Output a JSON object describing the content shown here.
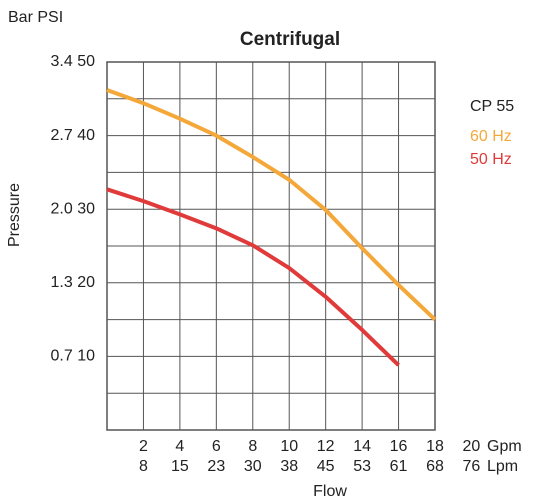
{
  "chart_data": {
    "type": "line",
    "title": "Centrifugal",
    "y_units": "Bar PSI",
    "ylabel": "Pressure",
    "xlabel": "Flow",
    "x_units": "Gpm",
    "x2_units": "Lpm",
    "legend_title": "CP 55",
    "x": [
      0,
      2,
      4,
      6,
      8,
      10,
      12,
      14,
      16,
      18
    ],
    "series": [
      {
        "name": "60 Hz",
        "color": "#f5a83a",
        "values": [
          46.2,
          44.4,
          42.3,
          40,
          37.1,
          34,
          29.9,
          24.7,
          19.7,
          15
        ]
      },
      {
        "name": "50 Hz",
        "color": "#e03a3a",
        "values": [
          32.7,
          31.1,
          29.3,
          27.4,
          25.1,
          22,
          18.1,
          13.6,
          8.8,
          null
        ]
      }
    ],
    "xlim": [
      0,
      18
    ],
    "xticks": [
      2,
      4,
      6,
      8,
      10,
      12,
      14,
      16,
      18,
      20
    ],
    "x2_tick_labels": [
      "8",
      "15",
      "23",
      "30",
      "38",
      "45",
      "53",
      "61",
      "68",
      "76"
    ],
    "ylim": [
      0,
      50
    ],
    "yticks": [
      {
        "value": 10,
        "label": "0.7 10"
      },
      {
        "value": 20,
        "label": "1.3 20"
      },
      {
        "value": 30,
        "label": "2.0 30"
      },
      {
        "value": 40,
        "label": "2.7 40"
      },
      {
        "value": 50,
        "label": "3.4 50"
      }
    ],
    "minor_yticks": [
      5,
      15,
      25,
      35,
      45
    ],
    "grid": true
  }
}
